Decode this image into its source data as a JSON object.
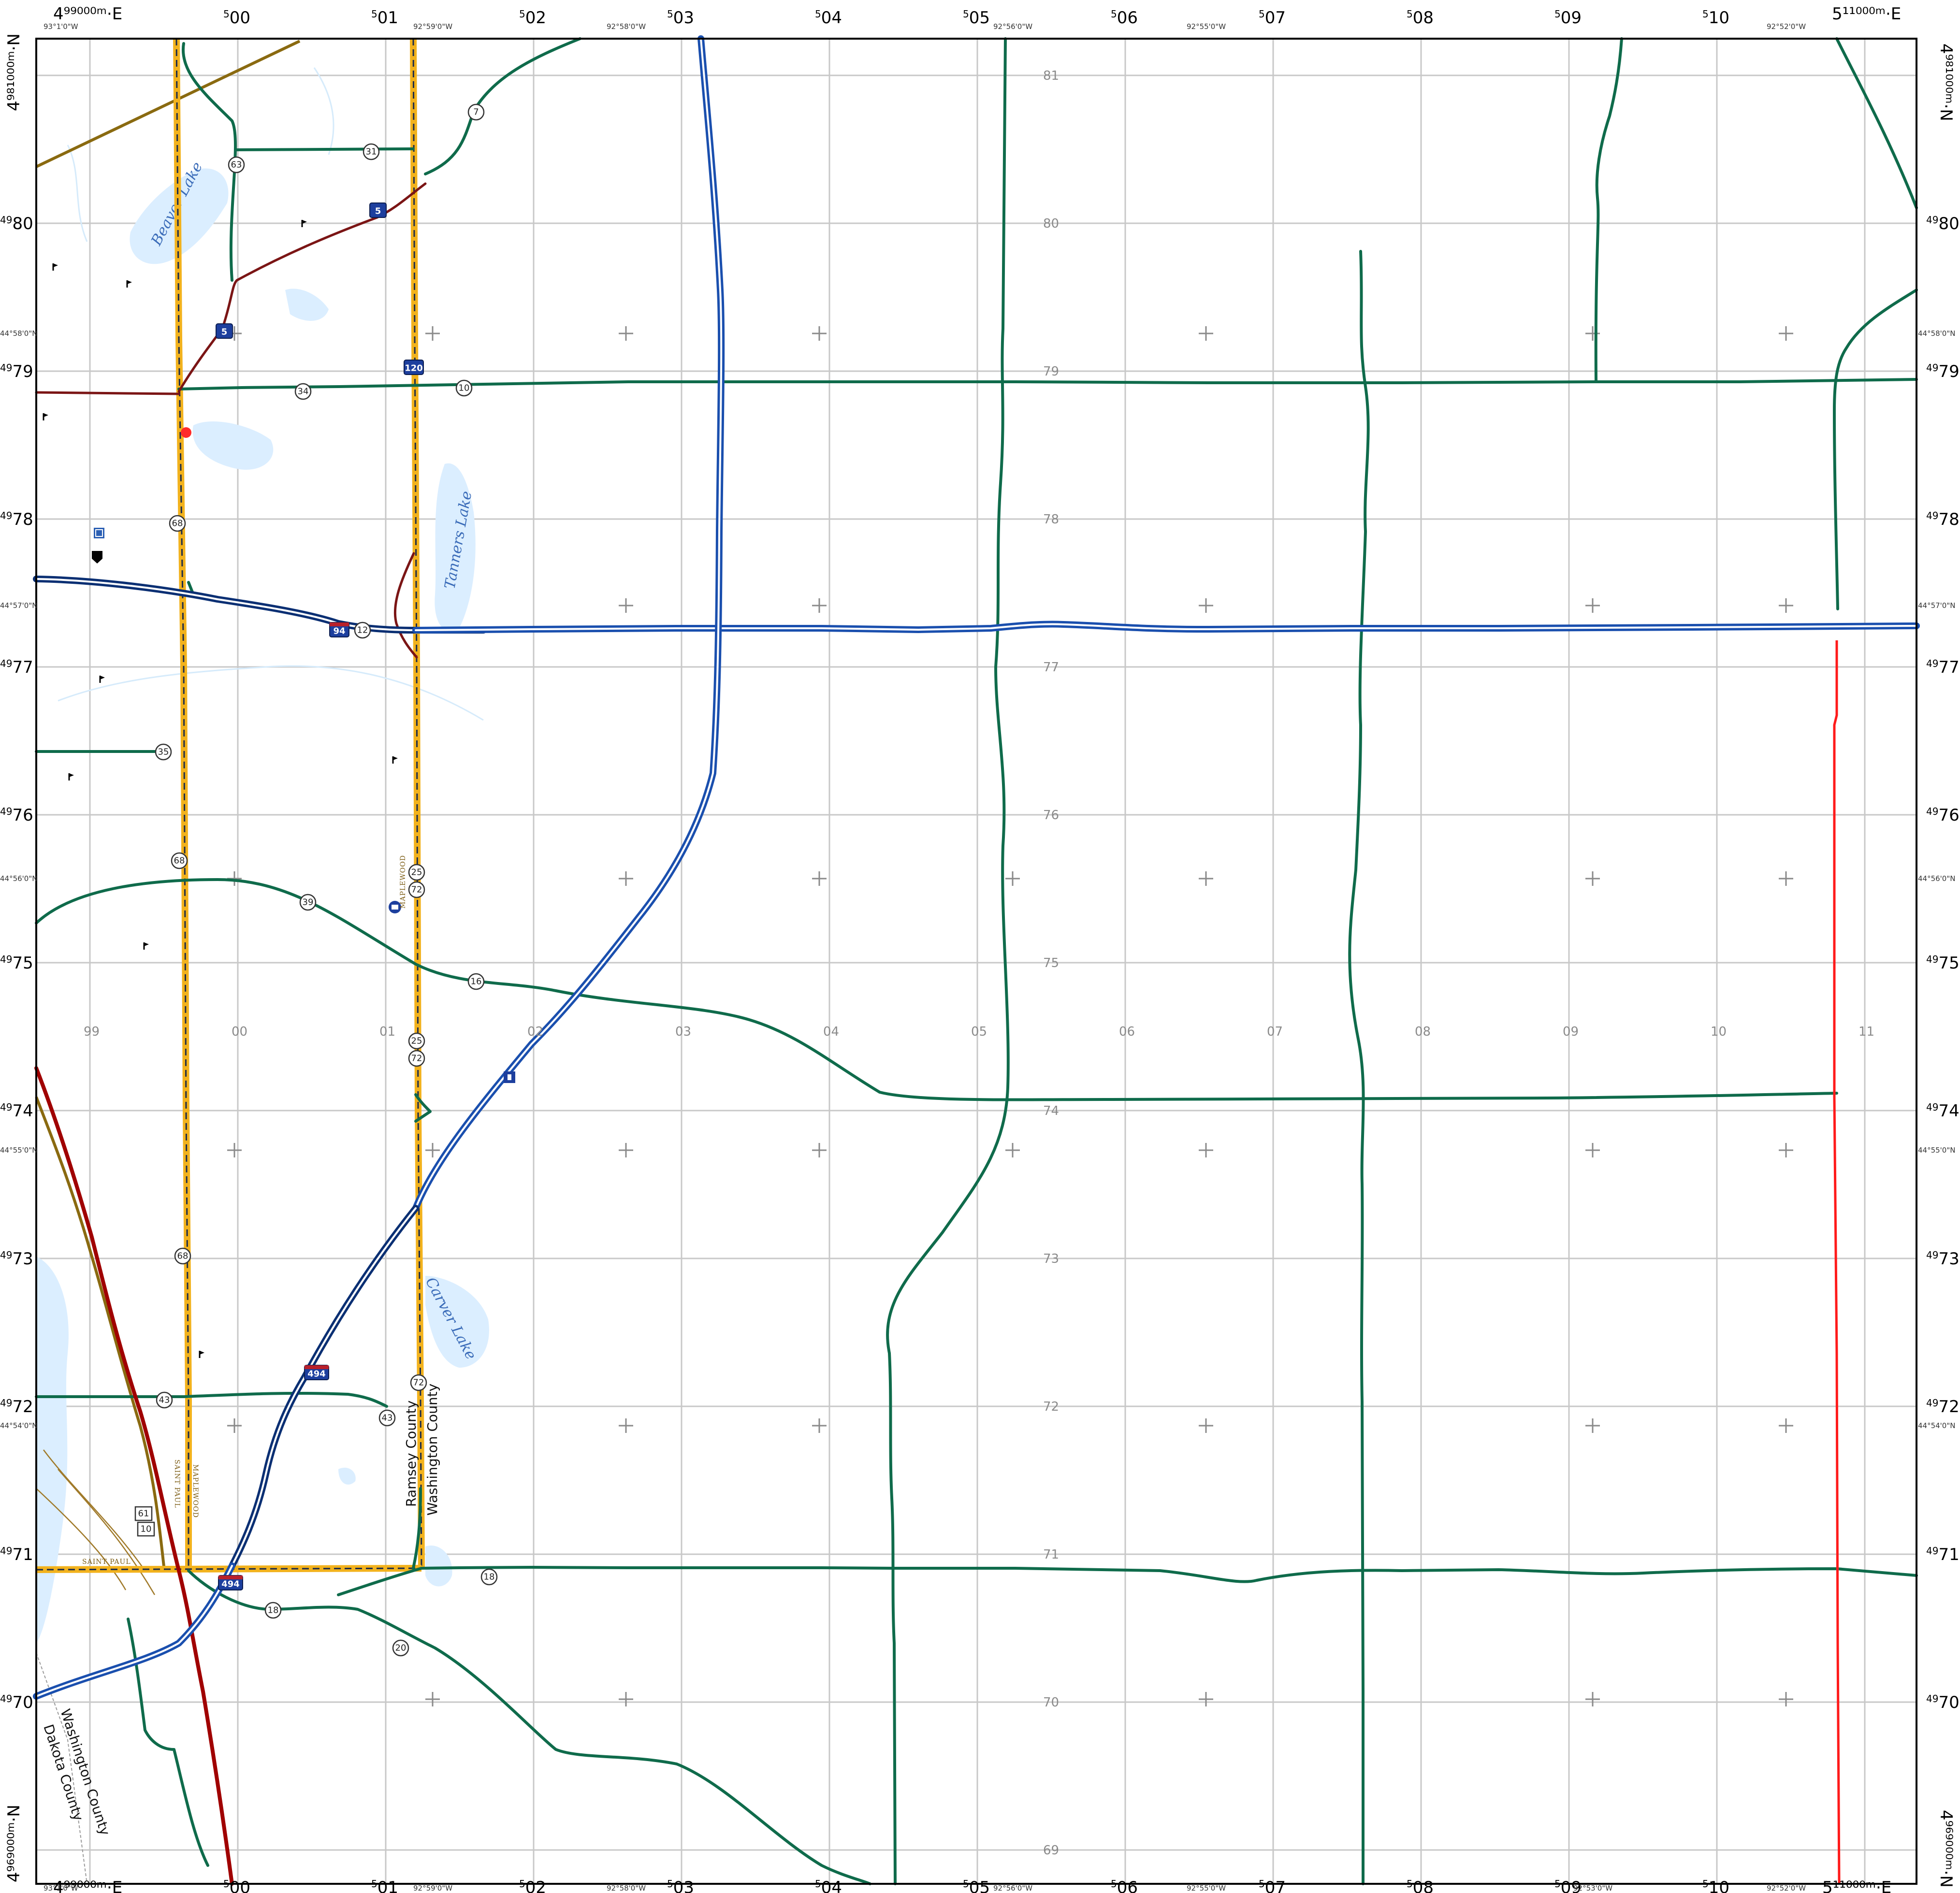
{
  "map": {
    "top_left_easting": "4⁹⁹⁰⁰⁰ᵐ·E",
    "top_right_easting": "5¹¹⁰⁰⁰ᵐ·E",
    "top_northing_left": "4⁹⁸¹⁰⁰⁰ᵐ·N",
    "top_northing_right": "4⁹⁸¹⁰⁰⁰ᵐ·N",
    "bottom_northing_left": "4⁹⁶⁹⁰⁰⁰ᵐ·N",
    "bottom_northing_right": "4⁹⁶⁹⁰⁰⁰ᵐ·N",
    "bottom_left_easting": "4⁹⁹⁰⁰⁰ᵐ·E",
    "bottom_right_easting": "5¹¹⁰⁰⁰ᵐ·E"
  },
  "eastings": [
    {
      "sup": "5",
      "main": "00"
    },
    {
      "sup": "5",
      "main": "01"
    },
    {
      "sup": "5",
      "main": "02"
    },
    {
      "sup": "5",
      "main": "03"
    },
    {
      "sup": "5",
      "main": "04"
    },
    {
      "sup": "5",
      "main": "05"
    },
    {
      "sup": "5",
      "main": "06"
    },
    {
      "sup": "5",
      "main": "07"
    },
    {
      "sup": "5",
      "main": "08"
    },
    {
      "sup": "5",
      "main": "09"
    },
    {
      "sup": "5",
      "main": "10"
    }
  ],
  "northings": [
    {
      "sup": "49",
      "main": "80"
    },
    {
      "sup": "49",
      "main": "79"
    },
    {
      "sup": "49",
      "main": "78"
    },
    {
      "sup": "49",
      "main": "77"
    },
    {
      "sup": "49",
      "main": "76"
    },
    {
      "sup": "49",
      "main": "75"
    },
    {
      "sup": "49",
      "main": "74"
    },
    {
      "sup": "49",
      "main": "73"
    },
    {
      "sup": "49",
      "main": "72"
    },
    {
      "sup": "49",
      "main": "71"
    },
    {
      "sup": "49",
      "main": "70"
    }
  ],
  "inner_easting_labels": [
    "99",
    "00",
    "01",
    "02",
    "03",
    "04",
    "05",
    "06",
    "07",
    "08",
    "09",
    "10",
    "11"
  ],
  "inner_northing_labels": [
    "81",
    "80",
    "79",
    "78",
    "77",
    "76",
    "75",
    "74",
    "73",
    "72",
    "71",
    "70",
    "69"
  ],
  "longitudes_top": [
    "93°1'0\"W",
    "92°59'0\"W",
    "92°58'0\"W",
    "92°56'0\"W",
    "92°55'0\"W",
    "92°52'0\"W"
  ],
  "longitudes_bottom": [
    "93°1'0\"W",
    "92°59'0\"W",
    "92°58'0\"W",
    "92°56'0\"W",
    "92°55'0\"W",
    "92°53'0\"W",
    "92°52'0\"W"
  ],
  "latitudes": [
    "44°58'0\"N",
    "44°57'0\"N",
    "44°56'0\"N",
    "44°55'0\"N",
    "44°54'0\"N"
  ],
  "lakes": {
    "beaver": "Beaver Lake",
    "tanners": "Tanners Lake",
    "carver": "Carver Lake"
  },
  "counties": {
    "ramsey": "Ramsey County",
    "washington": "Washington County",
    "washington2": "Washington County",
    "dakota": "Dakota County"
  },
  "cities": {
    "saint_paul": "SAINT PAUL",
    "maplewood": "MAPLEWOOD",
    "maplewood_top": "MAPLEWOOD",
    "saint_paul_bottom": "SAINT PAUL"
  },
  "shields": {
    "r7": "7",
    "r31": "31",
    "r63": "63",
    "r34": "34",
    "r10": "10",
    "r68a": "68",
    "r12": "12",
    "r35": "35",
    "r68b": "68",
    "r39": "39",
    "r25a": "25",
    "r72a": "72",
    "r16": "16",
    "r25b": "25",
    "r72b": "72",
    "r68c": "68",
    "r43a": "43",
    "r43b": "43",
    "r72c": "72",
    "r61": "61",
    "r10b": "10",
    "r18a": "18",
    "r18b": "18",
    "r20": "20",
    "i5a": "5",
    "i5b": "5",
    "i120": "120",
    "i94": "94",
    "i494a": "494",
    "i494b": "494"
  },
  "colors": {
    "interstate": "#1a4fae",
    "us_highway": "#a00000",
    "county_road": "#0f6b4b",
    "municipal_boundary": "#f2b21d",
    "water": "#dbeeff",
    "grid": "#c8c8c8"
  }
}
